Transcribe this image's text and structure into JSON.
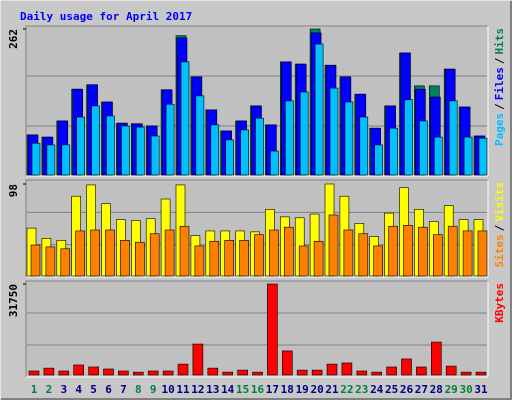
{
  "title": "Daily usage for April 2017",
  "title_color": "#0000ff",
  "legend_separator": "/",
  "chart_data": [
    {
      "type": "bar",
      "ylim": [
        0,
        262
      ],
      "yticks": [
        262
      ],
      "series": [
        {
          "name": "Hits",
          "color": "#00805c",
          "values": [
            72,
            68,
            97,
            154,
            162,
            131,
            93,
            92,
            88,
            153,
            250,
            176,
            117,
            79,
            97,
            124,
            90,
            203,
            199,
            262,
            197,
            176,
            145,
            84,
            124,
            219,
            160,
            160,
            190,
            122,
            70
          ]
        },
        {
          "name": "Files",
          "color": "#0000ff",
          "values": [
            72,
            68,
            97,
            154,
            162,
            131,
            93,
            92,
            88,
            153,
            246,
            176,
            117,
            79,
            97,
            124,
            90,
            203,
            199,
            255,
            197,
            176,
            145,
            84,
            124,
            219,
            154,
            140,
            190,
            122,
            70
          ]
        },
        {
          "name": "Pages",
          "color": "#00c0ff",
          "values": [
            57,
            54,
            54,
            104,
            124,
            106,
            88,
            86,
            70,
            127,
            203,
            142,
            90,
            63,
            81,
            102,
            43,
            133,
            149,
            235,
            156,
            131,
            104,
            54,
            84,
            135,
            97,
            68,
            133,
            68,
            66
          ]
        }
      ]
    },
    {
      "type": "bar",
      "ylim": [
        0,
        98
      ],
      "yticks": [
        98
      ],
      "series": [
        {
          "name": "Visits",
          "color": "#ffff00",
          "values": [
            51,
            40,
            38,
            85,
            97,
            77,
            60,
            59,
            61,
            82,
            97,
            43,
            48,
            48,
            48,
            47,
            71,
            63,
            62,
            66,
            98,
            85,
            56,
            42,
            67,
            94,
            71,
            58,
            75,
            60,
            60
          ]
        },
        {
          "name": "Sites",
          "color": "#ff8000",
          "values": [
            33,
            31,
            29,
            48,
            49,
            49,
            38,
            36,
            45,
            49,
            53,
            32,
            37,
            38,
            38,
            44,
            49,
            52,
            32,
            37,
            65,
            49,
            45,
            32,
            53,
            54,
            52,
            44,
            53,
            48,
            48
          ]
        }
      ]
    },
    {
      "type": "bar",
      "ylim": [
        0,
        31750
      ],
      "yticks": [
        31750
      ],
      "categories": [
        "1",
        "2",
        "3",
        "4",
        "5",
        "6",
        "7",
        "8",
        "9",
        "10",
        "11",
        "12",
        "13",
        "14",
        "15",
        "16",
        "17",
        "18",
        "19",
        "20",
        "21",
        "22",
        "23",
        "24",
        "25",
        "26",
        "27",
        "28",
        "29",
        "30",
        "31"
      ],
      "category_colors": [
        "#008040",
        "#008040",
        "#000080",
        "#000080",
        "#000080",
        "#000080",
        "#000080",
        "#008040",
        "#008040",
        "#000080",
        "#000080",
        "#000080",
        "#000080",
        "#000080",
        "#008040",
        "#008040",
        "#000080",
        "#000080",
        "#000080",
        "#000080",
        "#000080",
        "#008040",
        "#008040",
        "#000080",
        "#000080",
        "#000080",
        "#000080",
        "#000080",
        "#008040",
        "#008040",
        "#000080"
      ],
      "series": [
        {
          "name": "KBytes",
          "color": "#ff0000",
          "values": [
            1400,
            2400,
            1400,
            3500,
            2800,
            2100,
            1400,
            1000,
            1400,
            1400,
            3800,
            10800,
            2400,
            1000,
            1700,
            1000,
            31750,
            8400,
            1700,
            1700,
            3800,
            4200,
            1400,
            1000,
            2800,
            5600,
            2800,
            11500,
            3100,
            1000,
            1000
          ]
        }
      ]
    }
  ]
}
